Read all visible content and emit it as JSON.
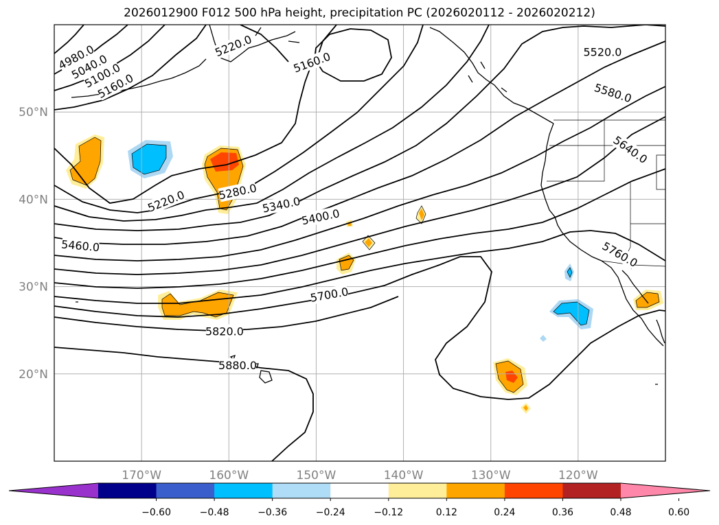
{
  "title": "2026012900 F012 500 hPa height, precipitation PC (2026020112 - 2026020212)",
  "map": {
    "lon_range": [
      -180,
      -110
    ],
    "lat_range": [
      10,
      60
    ],
    "lat_ticks": [
      {
        "value": 20,
        "label": "20°N"
      },
      {
        "value": 30,
        "label": "30°N"
      },
      {
        "value": 40,
        "label": "40°N"
      },
      {
        "value": 50,
        "label": "50°N"
      }
    ],
    "lon_ticks": [
      {
        "value": -170,
        "label": "170°W"
      },
      {
        "value": -160,
        "label": "160°W"
      },
      {
        "value": -150,
        "label": "150°W"
      },
      {
        "value": -140,
        "label": "140°W"
      },
      {
        "value": -130,
        "label": "130°W"
      },
      {
        "value": -120,
        "label": "120°W"
      }
    ],
    "gridlines": true
  },
  "contours": {
    "field": "500 hPa height",
    "labels": [
      {
        "text": "4980.0",
        "lon": -177.5,
        "lat": 56.3,
        "rot": -28
      },
      {
        "text": "5040.0",
        "lon": -176.0,
        "lat": 55.2,
        "rot": -28
      },
      {
        "text": "5100.0",
        "lon": -174.5,
        "lat": 54.2,
        "rot": -28
      },
      {
        "text": "5160.0",
        "lon": -173.0,
        "lat": 53.0,
        "rot": -28
      },
      {
        "text": "5220.0",
        "lon": -159.5,
        "lat": 57.6,
        "rot": -22
      },
      {
        "text": "5160.0",
        "lon": -150.5,
        "lat": 55.7,
        "rot": -20
      },
      {
        "text": "5520.0",
        "lon": -117.2,
        "lat": 56.9,
        "rot": 0
      },
      {
        "text": "5580.0",
        "lon": -116.0,
        "lat": 52.2,
        "rot": 18
      },
      {
        "text": "5640.0",
        "lon": -114.0,
        "lat": 45.7,
        "rot": 35
      },
      {
        "text": "5220.0",
        "lon": -167.2,
        "lat": 39.8,
        "rot": -22
      },
      {
        "text": "5280.0",
        "lon": -159.0,
        "lat": 40.9,
        "rot": -12
      },
      {
        "text": "5340.0",
        "lon": -154.0,
        "lat": 39.4,
        "rot": -12
      },
      {
        "text": "5400.0",
        "lon": -149.5,
        "lat": 38.0,
        "rot": -12
      },
      {
        "text": "5460.0",
        "lon": -177.0,
        "lat": 34.7,
        "rot": 5
      },
      {
        "text": "5700.0",
        "lon": -148.5,
        "lat": 29.1,
        "rot": -10
      },
      {
        "text": "5760.0",
        "lon": -115.2,
        "lat": 33.7,
        "rot": 30
      },
      {
        "text": "5820.0",
        "lon": -160.5,
        "lat": 24.9,
        "rot": 0
      },
      {
        "text": "5880.0",
        "lon": -159.0,
        "lat": 21.0,
        "rot": 0
      }
    ]
  },
  "precip_colors": {
    "p012": "#ffee99",
    "p024": "#ffa500",
    "p036": "#ff4500",
    "n012": "#add8f4",
    "n024": "#00bfff"
  },
  "colorbar": {
    "colors": [
      "#9932cc",
      "#00008b",
      "#3a5fcd",
      "#00bfff",
      "#afdcf7",
      "#ffffff",
      "#ffee99",
      "#ffa500",
      "#ff4500",
      "#b22222",
      "#ff88aa"
    ],
    "tick_labels": [
      "−0.60",
      "−0.48",
      "−0.36",
      "−0.24",
      "−0.12",
      "0.12",
      "0.24",
      "0.36",
      "0.48",
      "0.60"
    ]
  }
}
